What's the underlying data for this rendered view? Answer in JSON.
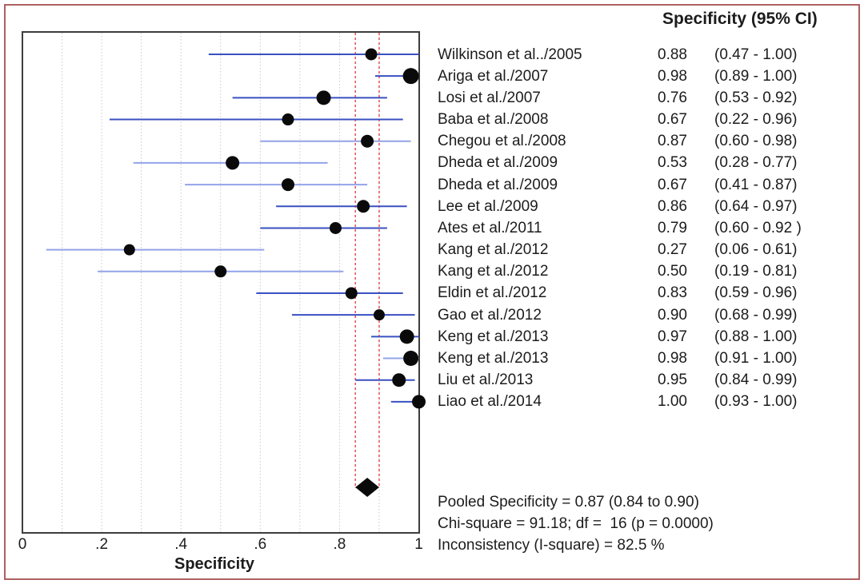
{
  "chart_data": {
    "type": "forest",
    "title": "Specificity (95% CI)",
    "xlabel": "Specificity",
    "xlim": [
      0,
      1
    ],
    "grid_values": [
      0.1,
      0.2,
      0.3,
      0.4,
      0.5,
      0.6,
      0.7,
      0.8,
      0.9
    ],
    "x_ticks": [
      {
        "label": "0",
        "value": 0
      },
      {
        "label": ".2",
        "value": 0.2
      },
      {
        "label": ".4",
        "value": 0.4
      },
      {
        "label": ".6",
        "value": 0.6
      },
      {
        "label": ".8",
        "value": 0.8
      },
      {
        "label": "1",
        "value": 1
      }
    ],
    "studies": [
      {
        "label": "Wilkinson et al../2005",
        "estimate": 0.88,
        "ci_lower": 0.47,
        "ci_upper": 1.0,
        "estimate_text": "0.88",
        "ci_text": "(0.47 - 1.00)",
        "marker_size": 15,
        "ci_color": "#3a50c2"
      },
      {
        "label": "Ariga et al./2007",
        "estimate": 0.98,
        "ci_lower": 0.89,
        "ci_upper": 1.0,
        "estimate_text": "0.98",
        "ci_text": "(0.89 - 1.00)",
        "marker_size": 20,
        "ci_color": "#3a50c2"
      },
      {
        "label": "Losi et al./2007",
        "estimate": 0.76,
        "ci_lower": 0.53,
        "ci_upper": 0.92,
        "estimate_text": "0.76",
        "ci_text": "(0.53 - 0.92)",
        "marker_size": 18,
        "ci_color": "#3a50c2"
      },
      {
        "label": "Baba et al./2008",
        "estimate": 0.67,
        "ci_lower": 0.22,
        "ci_upper": 0.96,
        "estimate_text": "0.67",
        "ci_text": "(0.22 - 0.96)",
        "marker_size": 15,
        "ci_color": "#3a50c2"
      },
      {
        "label": "Chegou et al./2008",
        "estimate": 0.87,
        "ci_lower": 0.6,
        "ci_upper": 0.98,
        "estimate_text": "0.87",
        "ci_text": "(0.60 - 0.98)",
        "marker_size": 16,
        "ci_color": "#93a3e8"
      },
      {
        "label": "Dheda et al./2009",
        "estimate": 0.53,
        "ci_lower": 0.28,
        "ci_upper": 0.77,
        "estimate_text": "0.53",
        "ci_text": "(0.28 - 0.77)",
        "marker_size": 17,
        "ci_color": "#93a3e8"
      },
      {
        "label": "Dheda et al./2009",
        "estimate": 0.67,
        "ci_lower": 0.41,
        "ci_upper": 0.87,
        "estimate_text": "0.67",
        "ci_text": "(0.41 - 0.87)",
        "marker_size": 16,
        "ci_color": "#93a3e8"
      },
      {
        "label": "Lee et al./2009",
        "estimate": 0.86,
        "ci_lower": 0.64,
        "ci_upper": 0.97,
        "estimate_text": "0.86",
        "ci_text": "(0.64 - 0.97)",
        "marker_size": 16,
        "ci_color": "#3a50c2"
      },
      {
        "label": "Ates et al./2011",
        "estimate": 0.79,
        "ci_lower": 0.6,
        "ci_upper": 0.92,
        "estimate_text": "0.79",
        "ci_text": "(0.60 - 0.92 )",
        "marker_size": 15,
        "ci_color": "#3a50c2"
      },
      {
        "label": "Kang et al./2012",
        "estimate": 0.27,
        "ci_lower": 0.06,
        "ci_upper": 0.61,
        "estimate_text": "0.27",
        "ci_text": "(0.06 - 0.61)",
        "marker_size": 14,
        "ci_color": "#93a3e8"
      },
      {
        "label": "Kang et al./2012",
        "estimate": 0.5,
        "ci_lower": 0.19,
        "ci_upper": 0.81,
        "estimate_text": "0.50",
        "ci_text": "(0.19 - 0.81)",
        "marker_size": 15,
        "ci_color": "#93a3e8"
      },
      {
        "label": "Eldin et al./2012",
        "estimate": 0.83,
        "ci_lower": 0.59,
        "ci_upper": 0.96,
        "estimate_text": "0.83",
        "ci_text": "(0.59 - 0.96)",
        "marker_size": 15,
        "ci_color": "#3a50c2"
      },
      {
        "label": "Gao et al./2012",
        "estimate": 0.9,
        "ci_lower": 0.68,
        "ci_upper": 0.99,
        "estimate_text": "0.90",
        "ci_text": "(0.68 - 0.99)",
        "marker_size": 14,
        "ci_color": "#3a50c2"
      },
      {
        "label": "Keng et al./2013",
        "estimate": 0.97,
        "ci_lower": 0.88,
        "ci_upper": 1.0,
        "estimate_text": "0.97",
        "ci_text": "(0.88 - 1.00)",
        "marker_size": 18,
        "ci_color": "#3a50c2"
      },
      {
        "label": "Keng et al./2013",
        "estimate": 0.98,
        "ci_lower": 0.91,
        "ci_upper": 1.0,
        "estimate_text": "0.98",
        "ci_text": "(0.91 - 1.00)",
        "marker_size": 19,
        "ci_color": "#93a3e8"
      },
      {
        "label": "Liu et al./2013",
        "estimate": 0.95,
        "ci_lower": 0.84,
        "ci_upper": 0.99,
        "estimate_text": "0.95",
        "ci_text": "(0.84 - 0.99)",
        "marker_size": 17,
        "ci_color": "#3a50c2"
      },
      {
        "label": "Liao et al./2014",
        "estimate": 1.0,
        "ci_lower": 0.93,
        "ci_upper": 1.0,
        "estimate_text": "1.00",
        "ci_text": "(0.93 - 1.00)",
        "marker_size": 17,
        "ci_color": "#3a50c2"
      }
    ],
    "pooled": {
      "estimate": 0.87,
      "ci_lower": 0.84,
      "ci_upper": 0.9
    },
    "summary_lines": [
      "Pooled Specificity = 0.87 (0.84 to 0.90)",
      "Chi-square = 91.18; df =  16 (p = 0.0000)",
      "Inconsistency (I-square) = 82.5 %"
    ]
  },
  "colors": {
    "outer_border": "#b06060",
    "plot_border": "#3d3d3d",
    "grid": "#c9c9c9",
    "pooled_dashed": "#e34f4f",
    "marker": "#0a0a0a",
    "text": "#1c1c1c"
  }
}
